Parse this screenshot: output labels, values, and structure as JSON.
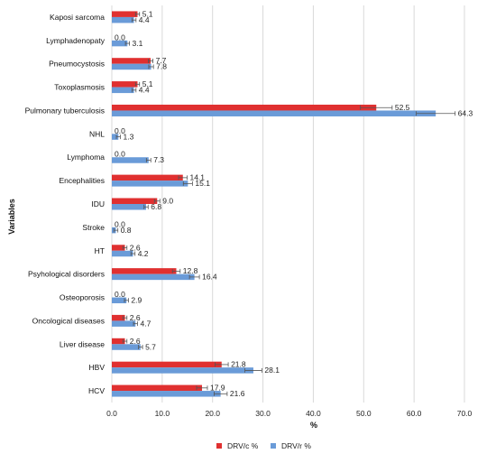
{
  "chart_data": {
    "type": "bar",
    "orientation": "horizontal",
    "categories": [
      "Kaposi sarcoma",
      "Lymphadenopaty",
      "Pneumocystosis",
      "Toxoplasmosis",
      "Pulmonary tuberculosis",
      "NHL",
      "Lymphoma",
      "Encephalities",
      "IDU",
      "Stroke",
      "HT",
      "Psyhological disorders",
      "Osteoporosis",
      "Oncological diseases",
      "Liver disease",
      "HBV",
      "HCV"
    ],
    "series": [
      {
        "name": "DRV/c %",
        "color": "#e03030",
        "values": [
          5.1,
          0.0,
          7.7,
          5.1,
          52.5,
          0.0,
          0.0,
          14.1,
          9.0,
          0.0,
          2.6,
          12.8,
          0.0,
          2.6,
          2.6,
          21.8,
          17.9
        ],
        "labels": [
          "5.1",
          "0.0",
          "7.7",
          "5.1",
          "52.5",
          "0.0",
          "0.0",
          "14.1",
          "9.0",
          "0.0",
          "2.6",
          "12.8",
          "0.0",
          "2.6",
          "2.6",
          "21.8",
          "17.9"
        ]
      },
      {
        "name": "DRV/r %",
        "color": "#6a9bd8",
        "values": [
          4.4,
          3.1,
          7.8,
          4.4,
          64.3,
          1.3,
          7.3,
          15.1,
          6.8,
          0.8,
          4.2,
          16.4,
          2.9,
          4.7,
          5.7,
          28.1,
          21.6
        ],
        "labels": [
          "4.4",
          "3.1",
          "7.8",
          "4.4",
          "64.3",
          "1.3",
          "7.3",
          "15.1",
          "6.8",
          "0.8",
          "4.2",
          "16.4",
          "2.9",
          "4.7",
          "5.7",
          "28.1",
          "21.6"
        ]
      }
    ],
    "xlabel": "%",
    "ylabel": "Variables",
    "xlim": [
      0,
      70
    ],
    "xticks": [
      "0.0",
      "10.0",
      "20.0",
      "30.0",
      "40.0",
      "50.0",
      "60.0",
      "70.0"
    ],
    "grid": true,
    "error_bars": true,
    "legend": "bottom-center"
  }
}
